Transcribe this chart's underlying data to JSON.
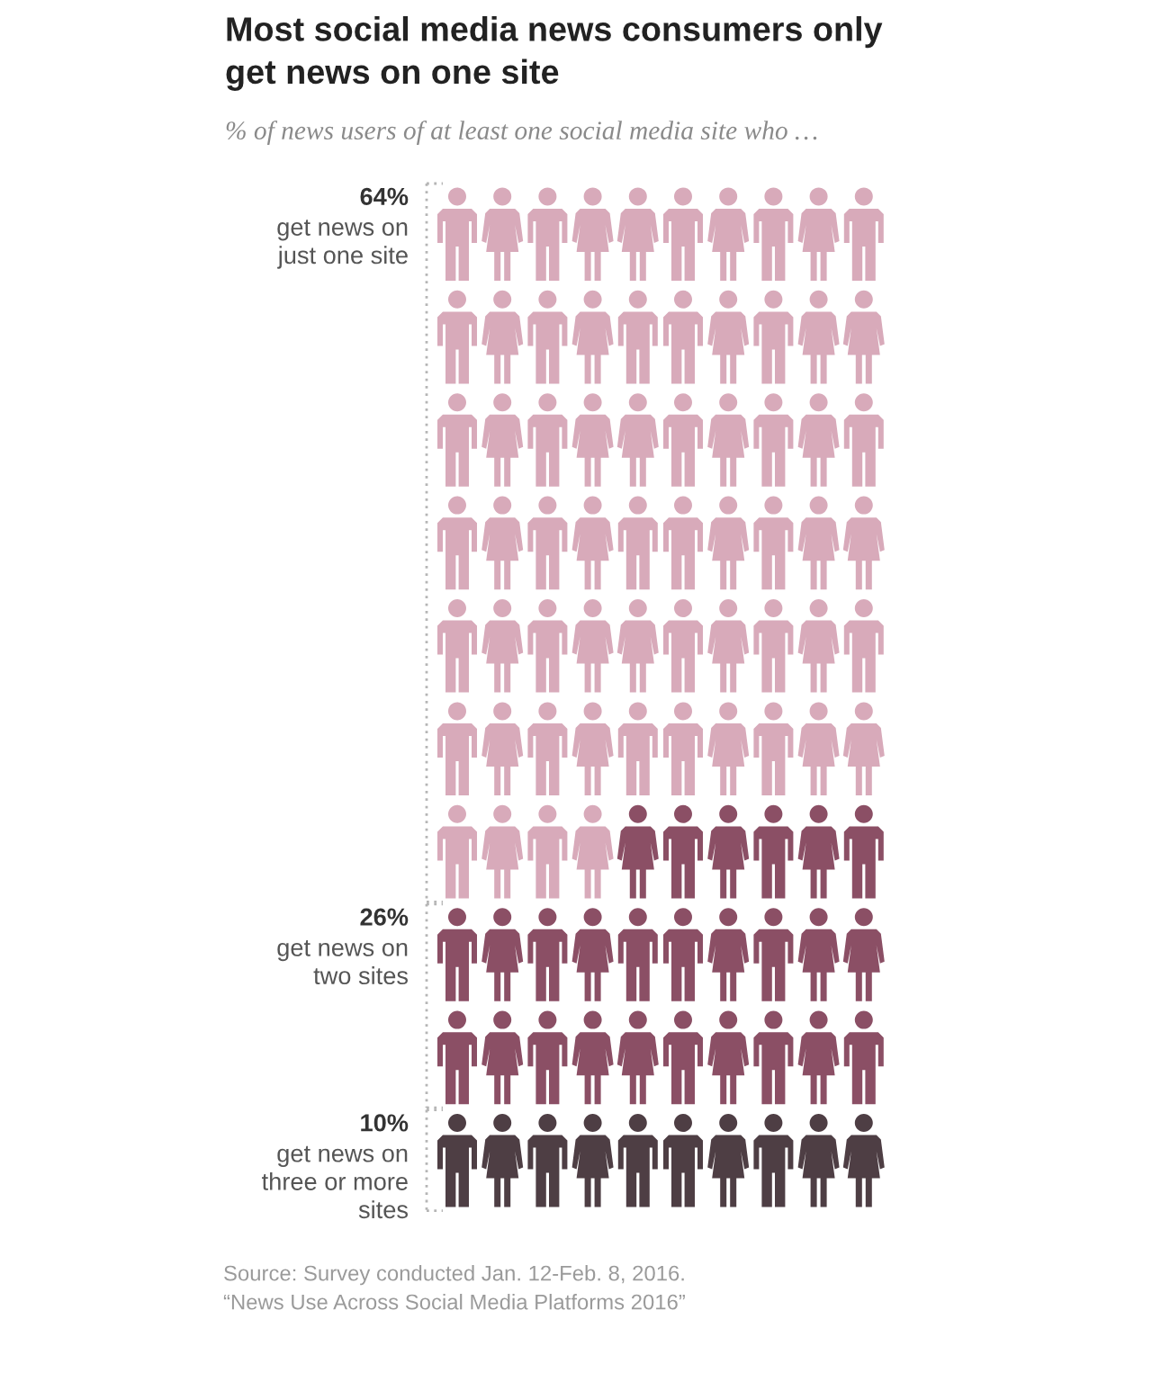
{
  "chart_data": {
    "type": "other",
    "title": "Most social media news consumers only\nget news on one site",
    "subtitle": "% of news users of at least one social media site who …",
    "categories": [
      "get news on\njust one site",
      "get news on\ntwo sites",
      "get news on\nthree or more\nsites"
    ],
    "values": [
      64,
      26,
      10
    ],
    "value_labels": [
      "64%",
      "26%",
      "10%"
    ],
    "colors": [
      "#d8aaba",
      "#8b4f65",
      "#4e3e44"
    ],
    "annotations": [
      "Source: Survey conducted Jan. 12-Feb. 8, 2016.",
      "“News Use Across Social Media Platforms 2016”"
    ]
  }
}
